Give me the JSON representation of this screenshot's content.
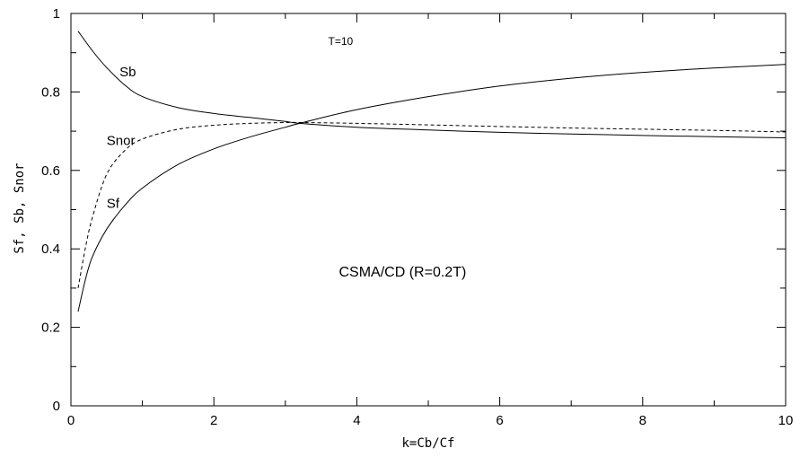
{
  "chart_data": {
    "type": "line",
    "title": "",
    "xlabel": "k=Cb/Cf",
    "ylabel": "Sf, Sb, Snor",
    "xlim": [
      0,
      10
    ],
    "ylim": [
      0,
      1
    ],
    "x_ticks": [
      "0",
      "2",
      "4",
      "6",
      "8",
      "10"
    ],
    "y_ticks": [
      "0",
      "0.2",
      "0.4",
      "0.6",
      "0.8",
      "1"
    ],
    "grid": false,
    "legend": "none",
    "annotations": [
      {
        "text": "T=10",
        "x": 3.6,
        "y": 0.92
      },
      {
        "text": "CSMA/CD (R=0.2T)",
        "x": 3.75,
        "y": 0.33
      },
      {
        "text": "Sb",
        "x": 0.68,
        "y": 0.84
      },
      {
        "text": "Snor",
        "x": 0.5,
        "y": 0.665
      },
      {
        "text": "Sf",
        "x": 0.5,
        "y": 0.505
      }
    ],
    "series": [
      {
        "name": "Sb",
        "style": "solid",
        "x": [
          0.1,
          0.3,
          0.5,
          0.75,
          1,
          1.5,
          2,
          2.5,
          3,
          3.2,
          4,
          5,
          6,
          7,
          8,
          9,
          10
        ],
        "y": [
          0.955,
          0.905,
          0.862,
          0.818,
          0.788,
          0.76,
          0.745,
          0.735,
          0.725,
          0.72,
          0.71,
          0.703,
          0.697,
          0.693,
          0.689,
          0.686,
          0.683
        ]
      },
      {
        "name": "Snor",
        "style": "dashed",
        "x": [
          0.1,
          0.2,
          0.3,
          0.5,
          0.75,
          1,
          1.5,
          2,
          2.5,
          3,
          3.2,
          4,
          5,
          6,
          7,
          8,
          9,
          10
        ],
        "y": [
          0.3,
          0.4,
          0.48,
          0.59,
          0.65,
          0.68,
          0.705,
          0.715,
          0.72,
          0.722,
          0.722,
          0.72,
          0.716,
          0.712,
          0.708,
          0.705,
          0.702,
          0.698
        ]
      },
      {
        "name": "Sf",
        "style": "solid",
        "x": [
          0.1,
          0.2,
          0.3,
          0.5,
          0.75,
          1,
          1.5,
          2,
          2.5,
          3,
          3.2,
          4,
          5,
          6,
          7,
          8,
          9,
          10
        ],
        "y": [
          0.24,
          0.32,
          0.38,
          0.45,
          0.51,
          0.555,
          0.615,
          0.655,
          0.685,
          0.71,
          0.72,
          0.755,
          0.788,
          0.815,
          0.835,
          0.85,
          0.861,
          0.87
        ]
      }
    ]
  }
}
